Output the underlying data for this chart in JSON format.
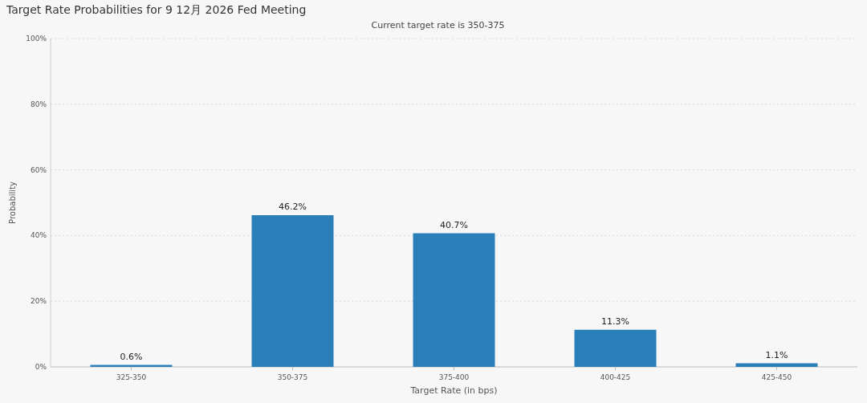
{
  "chart_data": {
    "type": "bar",
    "title": "Target Rate Probabilities for 9 12月 2026 Fed Meeting",
    "subtitle": "Current target rate is 350-375",
    "xlabel": "Target Rate (in bps)",
    "ylabel": "Probability",
    "categories": [
      "325-350",
      "350-375",
      "375-400",
      "400-425",
      "425-450"
    ],
    "values": [
      0.6,
      46.2,
      40.7,
      11.3,
      1.1
    ],
    "color": "#2a7fb8",
    "value_labels": [
      "0.6%",
      "46.2%",
      "40.7%",
      "11.3%",
      "1.1%"
    ],
    "ylim": [
      0,
      100
    ],
    "yticks": [
      {
        "value": 0,
        "label": "0%"
      },
      {
        "value": 20,
        "label": "20%"
      },
      {
        "value": 40,
        "label": "40%"
      },
      {
        "value": 60,
        "label": "60%"
      },
      {
        "value": 80,
        "label": "80%"
      },
      {
        "value": 100,
        "label": "100%"
      }
    ],
    "grid": "y"
  }
}
